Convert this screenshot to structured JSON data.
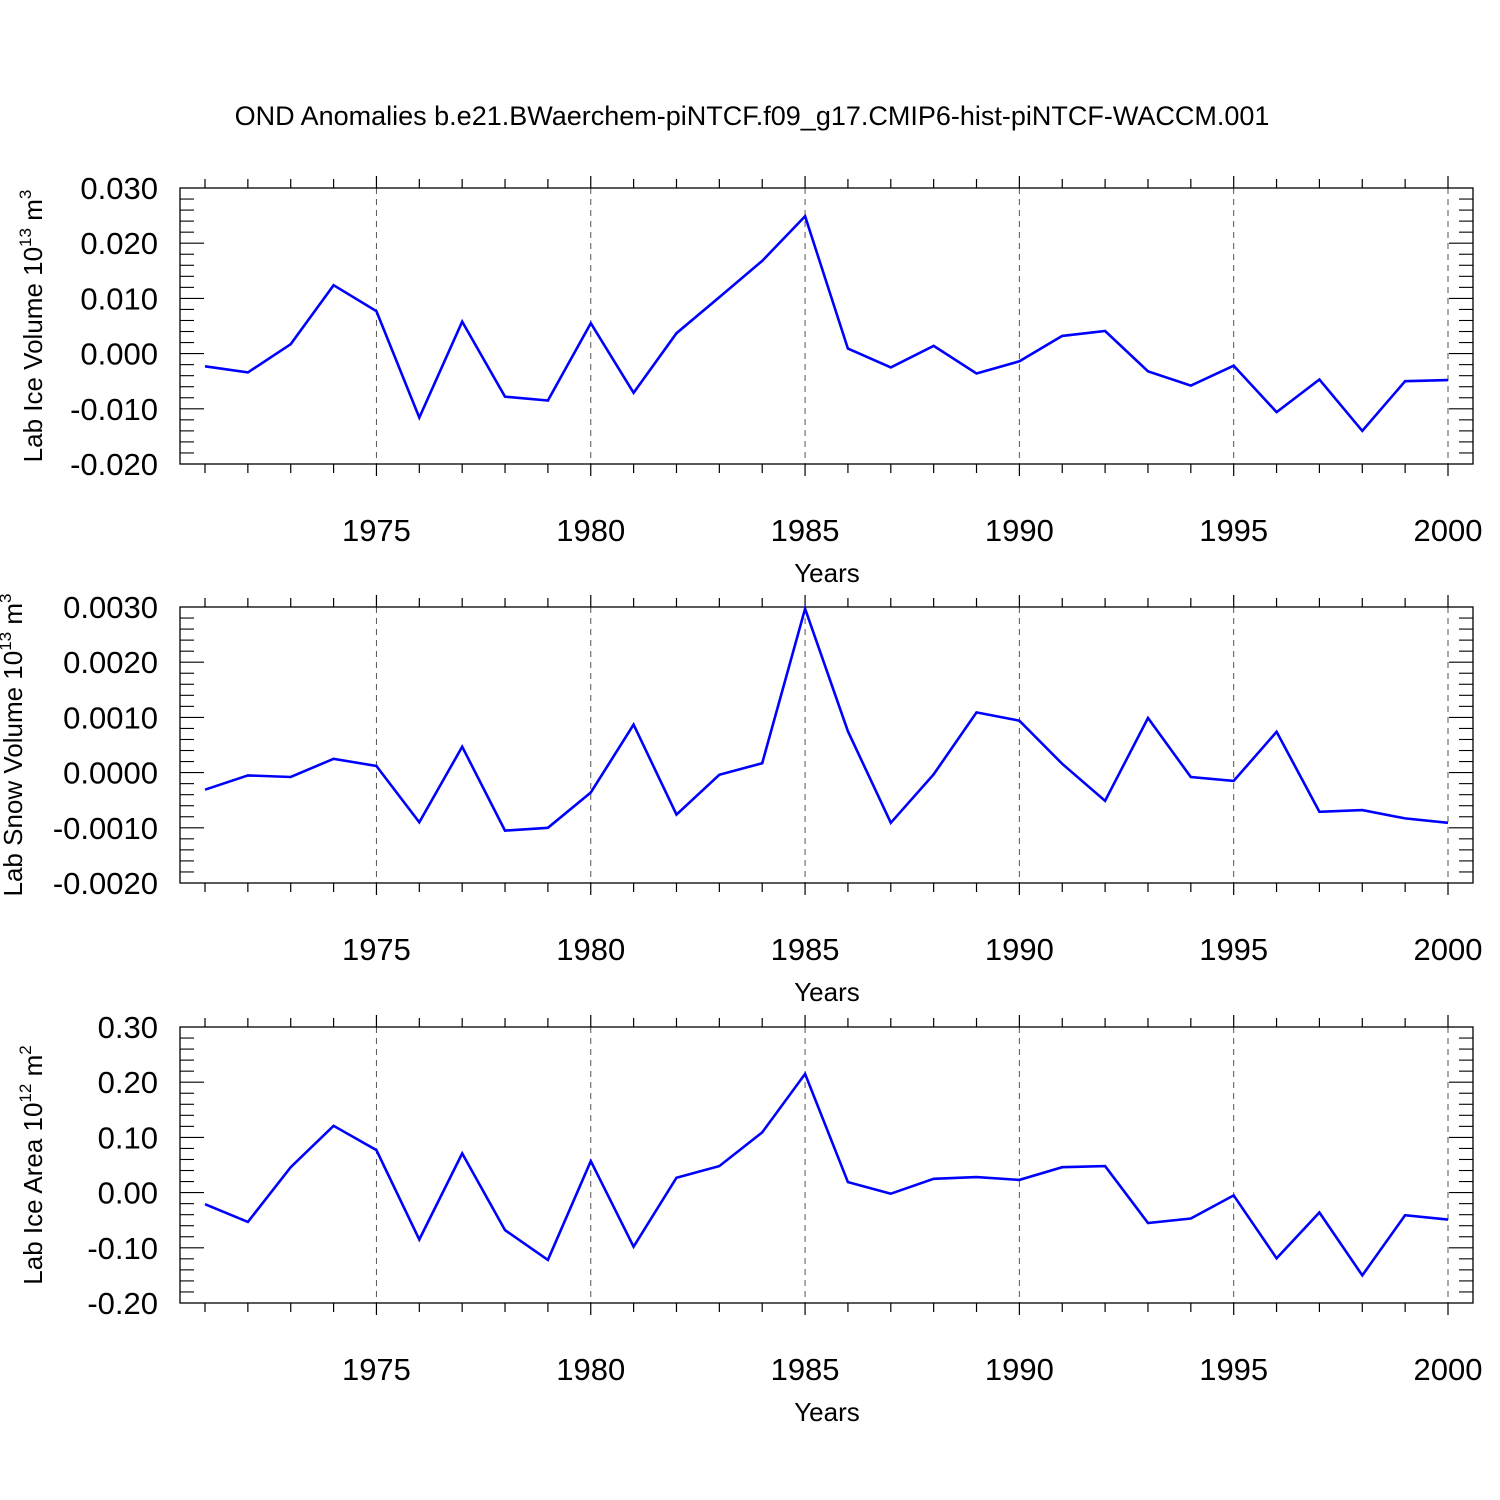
{
  "title": "OND Anomalies b.e21.BWaerchem-piNTCF.f09_g17.CMIP6-hist-piNTCF-WACCM.001",
  "chart_data": [
    {
      "type": "line",
      "color": "#0000ff",
      "xlabel": "Years",
      "ylabel_main": "Lab Ice Volume 10",
      "ylabel_exp": "13",
      "ylabel_unit": " m",
      "ylabel_unit_exp": "3",
      "xlim": [
        1971,
        2000
      ],
      "ylim": [
        -0.02,
        0.03
      ],
      "x_ticks": [
        1975,
        1980,
        1985,
        1990,
        1995,
        2000
      ],
      "x_tick_labels": [
        "1975",
        "1980",
        "1985",
        "1990",
        "1995",
        "2000"
      ],
      "y_ticks": [
        -0.02,
        -0.01,
        0.0,
        0.01,
        0.02,
        0.03
      ],
      "y_tick_labels": [
        "-0.020",
        "-0.010",
        "0.000",
        "0.010",
        "0.020",
        "0.030"
      ],
      "grid": "dashed vertical at major x ticks",
      "x": [
        1971,
        1972,
        1973,
        1974,
        1975,
        1976,
        1977,
        1978,
        1979,
        1980,
        1981,
        1982,
        1983,
        1984,
        1985,
        1986,
        1987,
        1988,
        1989,
        1990,
        1991,
        1992,
        1993,
        1994,
        1995,
        1996,
        1997,
        1998,
        1999,
        2000
      ],
      "values": [
        -0.0023,
        -0.0034,
        0.0017,
        0.0124,
        0.0077,
        -0.0116,
        0.0058,
        -0.0078,
        -0.0085,
        0.0055,
        -0.0071,
        0.0037,
        0.0102,
        0.0168,
        0.0249,
        0.0009,
        -0.0025,
        0.0014,
        -0.0036,
        -0.0014,
        0.0032,
        0.0041,
        -0.0032,
        -0.0058,
        -0.0022,
        -0.0106,
        -0.0047,
        -0.014,
        -0.005,
        -0.0048
      ]
    },
    {
      "type": "line",
      "color": "#0000ff",
      "xlabel": "Years",
      "ylabel_main": "Lab Snow Volume 10",
      "ylabel_exp": "13",
      "ylabel_unit": " m",
      "ylabel_unit_exp": "3",
      "xlim": [
        1971,
        2000
      ],
      "ylim": [
        -0.002,
        0.003
      ],
      "x_ticks": [
        1975,
        1980,
        1985,
        1990,
        1995,
        2000
      ],
      "x_tick_labels": [
        "1975",
        "1980",
        "1985",
        "1990",
        "1995",
        "2000"
      ],
      "y_ticks": [
        -0.002,
        -0.001,
        0.0,
        0.001,
        0.002,
        0.003
      ],
      "y_tick_labels": [
        "-0.0020",
        "-0.0010",
        "0.0000",
        "0.0010",
        "0.0020",
        "0.0030"
      ],
      "grid": "dashed vertical at major x ticks",
      "x": [
        1971,
        1972,
        1973,
        1974,
        1975,
        1976,
        1977,
        1978,
        1979,
        1980,
        1981,
        1982,
        1983,
        1984,
        1985,
        1986,
        1987,
        1988,
        1989,
        1990,
        1991,
        1992,
        1993,
        1994,
        1995,
        1996,
        1997,
        1998,
        1999,
        2000
      ],
      "values": [
        -0.00031,
        -5e-05,
        -8e-05,
        0.00025,
        0.00012,
        -0.0009,
        0.00047,
        -0.00105,
        -0.001,
        -0.00036,
        0.00087,
        -0.00076,
        -4e-05,
        0.00017,
        0.00297,
        0.00075,
        -0.00091,
        -3e-05,
        0.00109,
        0.00094,
        0.00016,
        -0.00051,
        0.00099,
        -8e-05,
        -0.00015,
        0.00074,
        -0.00071,
        -0.00068,
        -0.00083,
        -0.00091
      ]
    },
    {
      "type": "line",
      "color": "#0000ff",
      "xlabel": "Years",
      "ylabel_main": "Lab Ice Area 10",
      "ylabel_exp": "12",
      "ylabel_unit": " m",
      "ylabel_unit_exp": "2",
      "xlim": [
        1971,
        2000
      ],
      "ylim": [
        -0.2,
        0.3
      ],
      "x_ticks": [
        1975,
        1980,
        1985,
        1990,
        1995,
        2000
      ],
      "x_tick_labels": [
        "1975",
        "1980",
        "1985",
        "1990",
        "1995",
        "2000"
      ],
      "y_ticks": [
        -0.2,
        -0.1,
        0.0,
        0.1,
        0.2,
        0.3
      ],
      "y_tick_labels": [
        "-0.20",
        "-0.10",
        "0.00",
        "0.10",
        "0.20",
        "0.30"
      ],
      "grid": "dashed vertical at major x ticks",
      "x": [
        1971,
        1972,
        1973,
        1974,
        1975,
        1976,
        1977,
        1978,
        1979,
        1980,
        1981,
        1982,
        1983,
        1984,
        1985,
        1986,
        1987,
        1988,
        1989,
        1990,
        1991,
        1992,
        1993,
        1994,
        1995,
        1996,
        1997,
        1998,
        1999,
        2000
      ],
      "values": [
        -0.021,
        -0.053,
        0.046,
        0.121,
        0.077,
        -0.085,
        0.071,
        -0.068,
        -0.122,
        0.057,
        -0.098,
        0.027,
        0.048,
        0.109,
        0.215,
        0.019,
        -0.002,
        0.025,
        0.028,
        0.023,
        0.046,
        0.048,
        -0.055,
        -0.047,
        -0.005,
        -0.119,
        -0.036,
        -0.15,
        -0.041,
        -0.049
      ]
    }
  ]
}
